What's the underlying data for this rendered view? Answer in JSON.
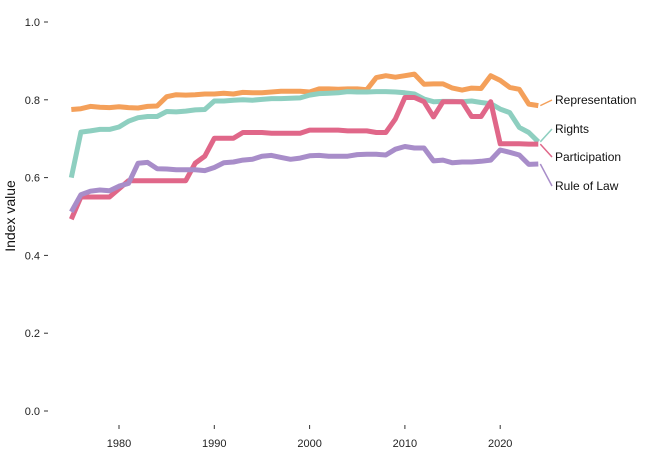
{
  "chart_data": {
    "type": "line",
    "title": "",
    "xlabel": "",
    "ylabel": "Index value",
    "xlim": [
      1974,
      2025
    ],
    "ylim": [
      0,
      1
    ],
    "grid": false,
    "legend": "direct labels at right end of lines",
    "x_ticks": [
      1980,
      1990,
      2000,
      2010,
      2020
    ],
    "y_ticks": [
      0.0,
      0.2,
      0.4,
      0.6,
      0.8,
      1.0
    ],
    "y_tick_labels": [
      "0.0",
      "0.2",
      "0.4",
      "0.6",
      "0.8",
      "1.0"
    ],
    "series": [
      {
        "name": "Representation",
        "color": "#F4A05A",
        "points": [
          [
            1975,
            0.775
          ],
          [
            1976,
            0.777
          ],
          [
            1977,
            0.783
          ],
          [
            1978,
            0.781
          ],
          [
            1979,
            0.78
          ],
          [
            1980,
            0.782
          ],
          [
            1981,
            0.78
          ],
          [
            1982,
            0.779
          ],
          [
            1983,
            0.783
          ],
          [
            1984,
            0.784
          ],
          [
            1985,
            0.808
          ],
          [
            1986,
            0.813
          ],
          [
            1987,
            0.812
          ],
          [
            1988,
            0.813
          ],
          [
            1989,
            0.815
          ],
          [
            1990,
            0.815
          ],
          [
            1991,
            0.817
          ],
          [
            1992,
            0.815
          ],
          [
            1993,
            0.819
          ],
          [
            1994,
            0.818
          ],
          [
            1995,
            0.818
          ],
          [
            1996,
            0.82
          ],
          [
            1997,
            0.822
          ],
          [
            1998,
            0.822
          ],
          [
            1999,
            0.822
          ],
          [
            2000,
            0.82
          ],
          [
            2001,
            0.828
          ],
          [
            2002,
            0.828
          ],
          [
            2003,
            0.827
          ],
          [
            2004,
            0.828
          ],
          [
            2005,
            0.828
          ],
          [
            2006,
            0.826
          ],
          [
            2007,
            0.857
          ],
          [
            2008,
            0.862
          ],
          [
            2009,
            0.858
          ],
          [
            2010,
            0.862
          ],
          [
            2011,
            0.866
          ],
          [
            2012,
            0.84
          ],
          [
            2013,
            0.841
          ],
          [
            2014,
            0.841
          ],
          [
            2015,
            0.83
          ],
          [
            2016,
            0.825
          ],
          [
            2017,
            0.83
          ],
          [
            2018,
            0.829
          ],
          [
            2019,
            0.862
          ],
          [
            2020,
            0.85
          ],
          [
            2021,
            0.832
          ],
          [
            2022,
            0.827
          ],
          [
            2023,
            0.789
          ],
          [
            2024,
            0.785
          ]
        ]
      },
      {
        "name": "Rights",
        "color": "#8ECFC0",
        "points": [
          [
            1975,
            0.6
          ],
          [
            1976,
            0.717
          ],
          [
            1977,
            0.72
          ],
          [
            1978,
            0.724
          ],
          [
            1979,
            0.724
          ],
          [
            1980,
            0.73
          ],
          [
            1981,
            0.745
          ],
          [
            1982,
            0.754
          ],
          [
            1983,
            0.757
          ],
          [
            1984,
            0.757
          ],
          [
            1985,
            0.77
          ],
          [
            1986,
            0.769
          ],
          [
            1987,
            0.771
          ],
          [
            1988,
            0.774
          ],
          [
            1989,
            0.775
          ],
          [
            1990,
            0.797
          ],
          [
            1991,
            0.797
          ],
          [
            1992,
            0.799
          ],
          [
            1993,
            0.8
          ],
          [
            1994,
            0.799
          ],
          [
            1995,
            0.801
          ],
          [
            1996,
            0.803
          ],
          [
            1997,
            0.803
          ],
          [
            1998,
            0.804
          ],
          [
            1999,
            0.805
          ],
          [
            2000,
            0.812
          ],
          [
            2001,
            0.816
          ],
          [
            2002,
            0.817
          ],
          [
            2003,
            0.818
          ],
          [
            2004,
            0.821
          ],
          [
            2005,
            0.82
          ],
          [
            2006,
            0.82
          ],
          [
            2007,
            0.821
          ],
          [
            2008,
            0.821
          ],
          [
            2009,
            0.82
          ],
          [
            2010,
            0.818
          ],
          [
            2011,
            0.815
          ],
          [
            2012,
            0.802
          ],
          [
            2013,
            0.795
          ],
          [
            2014,
            0.796
          ],
          [
            2015,
            0.796
          ],
          [
            2016,
            0.795
          ],
          [
            2017,
            0.797
          ],
          [
            2018,
            0.793
          ],
          [
            2019,
            0.79
          ],
          [
            2020,
            0.776
          ],
          [
            2021,
            0.767
          ],
          [
            2022,
            0.729
          ],
          [
            2023,
            0.716
          ],
          [
            2024,
            0.692
          ]
        ]
      },
      {
        "name": "Participation",
        "color": "#E06789",
        "points": [
          [
            1975,
            0.493
          ],
          [
            1976,
            0.55
          ],
          [
            1977,
            0.55
          ],
          [
            1978,
            0.55
          ],
          [
            1979,
            0.55
          ],
          [
            1980,
            0.571
          ],
          [
            1981,
            0.592
          ],
          [
            1982,
            0.592
          ],
          [
            1983,
            0.592
          ],
          [
            1984,
            0.592
          ],
          [
            1985,
            0.592
          ],
          [
            1986,
            0.592
          ],
          [
            1987,
            0.592
          ],
          [
            1988,
            0.637
          ],
          [
            1989,
            0.655
          ],
          [
            1990,
            0.701
          ],
          [
            1991,
            0.701
          ],
          [
            1992,
            0.701
          ],
          [
            1993,
            0.716
          ],
          [
            1994,
            0.716
          ],
          [
            1995,
            0.716
          ],
          [
            1996,
            0.714
          ],
          [
            1997,
            0.714
          ],
          [
            1998,
            0.714
          ],
          [
            1999,
            0.714
          ],
          [
            2000,
            0.722
          ],
          [
            2001,
            0.722
          ],
          [
            2002,
            0.722
          ],
          [
            2003,
            0.722
          ],
          [
            2004,
            0.72
          ],
          [
            2005,
            0.72
          ],
          [
            2006,
            0.72
          ],
          [
            2007,
            0.716
          ],
          [
            2008,
            0.716
          ],
          [
            2009,
            0.751
          ],
          [
            2010,
            0.806
          ],
          [
            2011,
            0.806
          ],
          [
            2012,
            0.795
          ],
          [
            2013,
            0.756
          ],
          [
            2014,
            0.795
          ],
          [
            2015,
            0.795
          ],
          [
            2016,
            0.795
          ],
          [
            2017,
            0.757
          ],
          [
            2018,
            0.757
          ],
          [
            2019,
            0.795
          ],
          [
            2020,
            0.687
          ],
          [
            2021,
            0.687
          ],
          [
            2022,
            0.687
          ],
          [
            2023,
            0.686
          ],
          [
            2024,
            0.686
          ]
        ]
      },
      {
        "name": "Rule of Law",
        "color": "#A88DC9",
        "points": [
          [
            1975,
            0.512
          ],
          [
            1976,
            0.556
          ],
          [
            1977,
            0.565
          ],
          [
            1978,
            0.568
          ],
          [
            1979,
            0.566
          ],
          [
            1980,
            0.578
          ],
          [
            1981,
            0.585
          ],
          [
            1982,
            0.637
          ],
          [
            1983,
            0.639
          ],
          [
            1984,
            0.623
          ],
          [
            1985,
            0.622
          ],
          [
            1986,
            0.62
          ],
          [
            1987,
            0.62
          ],
          [
            1988,
            0.62
          ],
          [
            1989,
            0.618
          ],
          [
            1990,
            0.626
          ],
          [
            1991,
            0.638
          ],
          [
            1992,
            0.64
          ],
          [
            1993,
            0.645
          ],
          [
            1994,
            0.647
          ],
          [
            1995,
            0.655
          ],
          [
            1996,
            0.657
          ],
          [
            1997,
            0.652
          ],
          [
            1998,
            0.647
          ],
          [
            1999,
            0.65
          ],
          [
            2000,
            0.656
          ],
          [
            2001,
            0.657
          ],
          [
            2002,
            0.655
          ],
          [
            2003,
            0.655
          ],
          [
            2004,
            0.655
          ],
          [
            2005,
            0.659
          ],
          [
            2006,
            0.66
          ],
          [
            2007,
            0.66
          ],
          [
            2008,
            0.658
          ],
          [
            2009,
            0.673
          ],
          [
            2010,
            0.68
          ],
          [
            2011,
            0.676
          ],
          [
            2012,
            0.676
          ],
          [
            2013,
            0.643
          ],
          [
            2014,
            0.645
          ],
          [
            2015,
            0.638
          ],
          [
            2016,
            0.64
          ],
          [
            2017,
            0.64
          ],
          [
            2018,
            0.642
          ],
          [
            2019,
            0.645
          ],
          [
            2020,
            0.671
          ],
          [
            2021,
            0.665
          ],
          [
            2022,
            0.658
          ],
          [
            2023,
            0.634
          ],
          [
            2024,
            0.635
          ]
        ]
      }
    ]
  }
}
